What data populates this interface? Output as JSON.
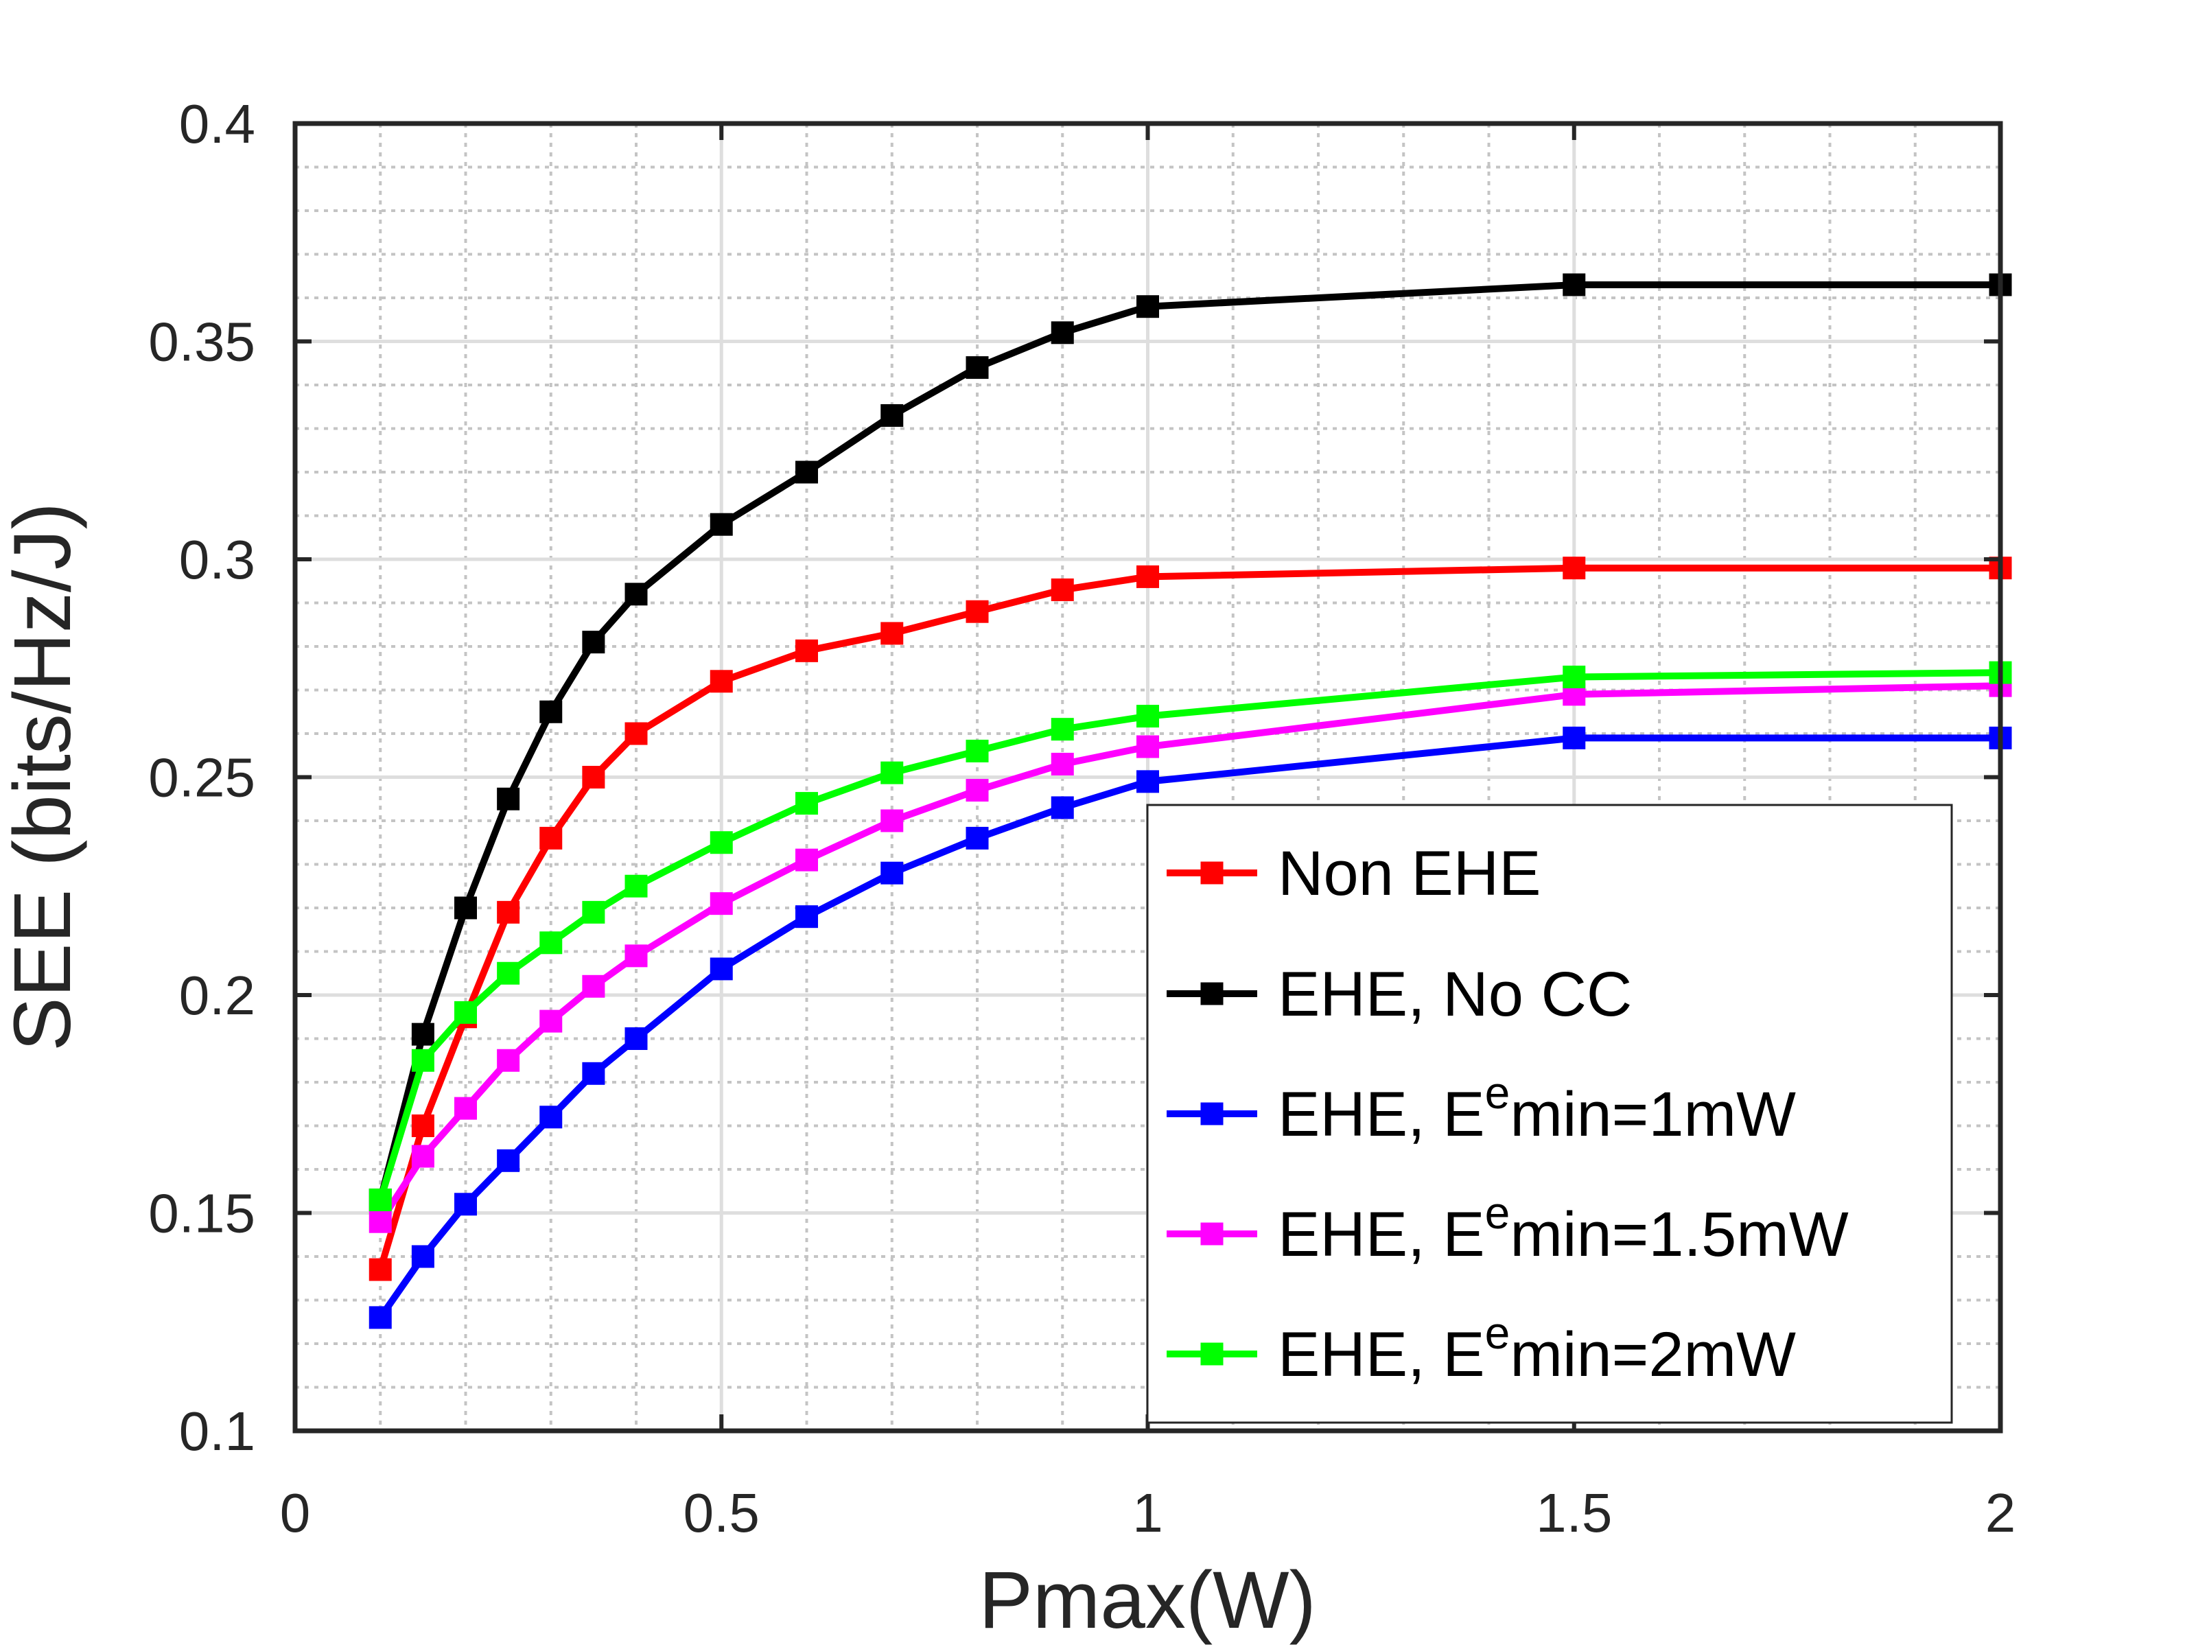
{
  "chart_data": {
    "type": "line",
    "title": "",
    "xlabel": "Pmax(W)",
    "ylabel": "SEE (bits/Hz/J)",
    "xlim": [
      0,
      2
    ],
    "ylim": [
      0.1,
      0.4
    ],
    "xticks": [
      0,
      0.5,
      1,
      1.5,
      2
    ],
    "xtick_labels": [
      "0",
      "0.5",
      "1",
      "1.5",
      "2"
    ],
    "yticks": [
      0.1,
      0.15,
      0.2,
      0.25,
      0.3,
      0.35,
      0.4
    ],
    "ytick_labels": [
      "0.1",
      "0.15",
      "0.2",
      "0.25",
      "0.3",
      "0.35",
      "0.4"
    ],
    "grid": true,
    "minor_grid": true,
    "legend_position": "bottom-right",
    "x": [
      0.1,
      0.15,
      0.2,
      0.25,
      0.3,
      0.35,
      0.4,
      0.5,
      0.6,
      0.7,
      0.8,
      0.9,
      1.0,
      1.5,
      2.0
    ],
    "series": [
      {
        "name": "Non EHE",
        "legend": {
          "prefix": "Non EHE",
          "sup": "",
          "suffix": ""
        },
        "color": "#ff0000",
        "values": [
          0.137,
          0.17,
          0.195,
          0.219,
          0.236,
          0.25,
          0.26,
          0.272,
          0.279,
          0.283,
          0.288,
          0.293,
          0.296,
          0.298,
          0.298
        ]
      },
      {
        "name": "EHE, No CC",
        "legend": {
          "prefix": "EHE, No CC",
          "sup": "",
          "suffix": ""
        },
        "color": "#000000",
        "values": [
          0.153,
          0.191,
          0.22,
          0.245,
          0.265,
          0.281,
          0.292,
          0.308,
          0.32,
          0.333,
          0.344,
          0.352,
          0.358,
          0.363,
          0.363
        ]
      },
      {
        "name": "EHE, E^e min=1mW",
        "legend": {
          "prefix": "EHE, E",
          "sup": "e",
          "suffix": "min=1mW"
        },
        "color": "#0000ff",
        "values": [
          0.126,
          0.14,
          0.152,
          0.162,
          0.172,
          0.182,
          0.19,
          0.206,
          0.218,
          0.228,
          0.236,
          0.243,
          0.249,
          0.259,
          0.259
        ]
      },
      {
        "name": "EHE, E^e min=1.5mW",
        "legend": {
          "prefix": "EHE, E",
          "sup": "e",
          "suffix": "min=1.5mW"
        },
        "color": "#ff00ff",
        "values": [
          0.148,
          0.163,
          0.174,
          0.185,
          0.194,
          0.202,
          0.209,
          0.221,
          0.231,
          0.24,
          0.247,
          0.253,
          0.257,
          0.269,
          0.271
        ]
      },
      {
        "name": "EHE, E^e min=2mW",
        "legend": {
          "prefix": "EHE, E",
          "sup": "e",
          "suffix": "min=2mW"
        },
        "color": "#00ff00",
        "values": [
          0.153,
          0.185,
          0.196,
          0.205,
          0.212,
          0.219,
          0.225,
          0.235,
          0.244,
          0.251,
          0.256,
          0.261,
          0.264,
          0.273,
          0.274
        ]
      }
    ]
  }
}
